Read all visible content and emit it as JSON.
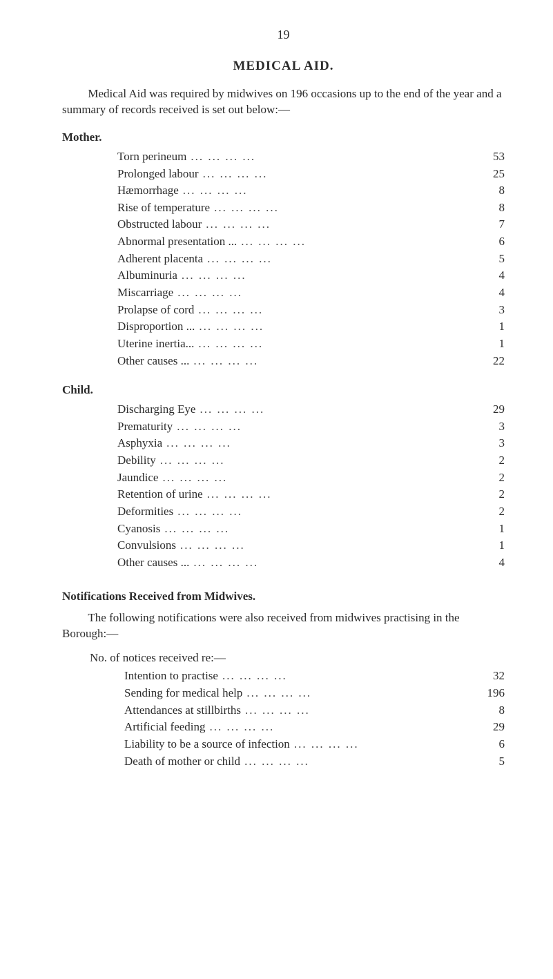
{
  "page_number": "19",
  "title": "MEDICAL AID.",
  "intro": "Medical Aid was required by midwives on 196 occasions up to the end of the year and a summary of records received is set out below:—",
  "mother": {
    "heading": "Mother.",
    "rows": [
      {
        "label": "Torn perineum",
        "value": "53"
      },
      {
        "label": "Prolonged labour",
        "value": "25"
      },
      {
        "label": "Hæmorrhage",
        "value": "8"
      },
      {
        "label": "Rise of temperature",
        "value": "8"
      },
      {
        "label": "Obstructed labour",
        "value": "7"
      },
      {
        "label": "Abnormal presentation ...",
        "value": "6"
      },
      {
        "label": "Adherent placenta",
        "value": "5"
      },
      {
        "label": "Albuminuria",
        "value": "4"
      },
      {
        "label": "Miscarriage",
        "value": "4"
      },
      {
        "label": "Prolapse of cord",
        "value": "3"
      },
      {
        "label": "Disproportion ...",
        "value": "1"
      },
      {
        "label": "Uterine inertia...",
        "value": "1"
      },
      {
        "label": "Other causes ...",
        "value": "22"
      }
    ]
  },
  "child": {
    "heading": "Child.",
    "rows": [
      {
        "label": "Discharging Eye",
        "value": "29"
      },
      {
        "label": "Prematurity",
        "value": "3"
      },
      {
        "label": "Asphyxia",
        "value": "3"
      },
      {
        "label": "Debility",
        "value": "2"
      },
      {
        "label": "Jaundice",
        "value": "2"
      },
      {
        "label": "Retention of urine",
        "value": "2"
      },
      {
        "label": "Deformities",
        "value": "2"
      },
      {
        "label": "Cyanosis",
        "value": "1"
      },
      {
        "label": "Convulsions",
        "value": "1"
      },
      {
        "label": "Other causes ...",
        "value": "4"
      }
    ]
  },
  "notifications": {
    "heading": "Notifications Received from Midwives.",
    "body": "The following notifications were also received from midwives practising in the Borough:—",
    "sublabel": "No. of notices received re:—",
    "rows": [
      {
        "label": "Intention to practise",
        "value": "32"
      },
      {
        "label": "Sending for medical help",
        "value": "196"
      },
      {
        "label": "Attendances at stillbirths",
        "value": "8"
      },
      {
        "label": "Artificial feeding",
        "value": "29"
      },
      {
        "label": "Liability to be a source of infection",
        "value": "6"
      },
      {
        "label": "Death of mother or child",
        "value": "5"
      }
    ]
  },
  "colors": {
    "text": "#2b2b2b",
    "background": "#ffffff"
  },
  "typography": {
    "body_fontsize_pt": 13,
    "title_fontsize_pt": 14,
    "font_family": "serif"
  }
}
